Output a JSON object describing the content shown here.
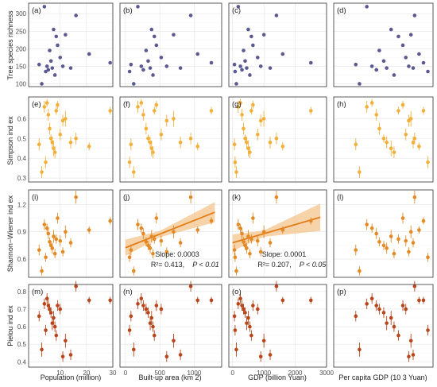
{
  "colors": {
    "richness": "#5a5a91",
    "simpson": "#f2b03b",
    "shannon": "#e38a25",
    "pielou": "#b8461c",
    "fit_line": "#e27d18",
    "fit_band": "#f3c48b"
  },
  "rows": [
    {
      "key": "richness",
      "ylabel": "Tree species richness",
      "ylim": [
        92,
        330
      ],
      "yticks": [
        100,
        150,
        200,
        250,
        300
      ],
      "tick_labels": [
        "100",
        "150",
        "200",
        "250",
        "300"
      ]
    },
    {
      "key": "simpson",
      "ylabel": "Simpson ind ex",
      "ylim": [
        0.28,
        0.71
      ],
      "yticks": [
        0.3,
        0.4,
        0.5,
        0.6
      ],
      "tick_labels": [
        "0.3",
        "0.4",
        "0.5",
        "0.6"
      ]
    },
    {
      "key": "shannon",
      "ylabel": "Shannon−Wiener ind ex",
      "ylim": [
        0.4,
        1.36
      ],
      "yticks": [
        0.6,
        0.9,
        1.2
      ],
      "tick_labels": [
        "0.6",
        "0.9",
        "1.2"
      ]
    },
    {
      "key": "pielou",
      "ylabel": "Pielou ind ex",
      "ylim": [
        0.37,
        0.84
      ],
      "yticks": [
        0.4,
        0.5,
        0.6,
        0.7,
        0.8
      ],
      "tick_labels": [
        "0.4",
        "0.5",
        "0.6",
        "0.7",
        "0.8"
      ]
    }
  ],
  "columns": [
    {
      "key": "population",
      "xlabel": "Population (million)",
      "xlim": [
        -2,
        30
      ],
      "xticks": [
        10,
        20,
        30
      ],
      "tick_labels": [
        "10",
        "20",
        "30"
      ]
    },
    {
      "key": "builtup",
      "xlabel": "Built-up area (km 2)",
      "xlim": [
        -80,
        1400
      ],
      "xticks": [
        0,
        500,
        1000
      ],
      "tick_labels": [
        "0",
        "500",
        "1000"
      ]
    },
    {
      "key": "gdp",
      "xlabel": "GDP (billion Yuan)",
      "xlim": [
        -120,
        3000
      ],
      "xticks": [
        0,
        1000,
        2000,
        3000
      ],
      "tick_labels": [
        "0",
        "1000",
        "2000",
        "3000"
      ]
    },
    {
      "key": "percapita",
      "xlabel": "Per capita GDP (10 3 Yuan)",
      "xlim": [
        10,
        145
      ],
      "xticks": [],
      "tick_labels": []
    }
  ],
  "panel_tags": [
    "(a)",
    "(b)",
    "(c)",
    "(d)",
    "(e)",
    "(f)",
    "(g)",
    "(h)",
    "(i)",
    "(j)",
    "(k)",
    "(l)",
    "(m)",
    "(n)",
    "(o)",
    "(p)"
  ],
  "chart_data": {
    "type": "scatter",
    "note_cities": 20,
    "x": {
      "population": [
        2.0,
        3.0,
        4.0,
        5.0,
        5.5,
        6.0,
        6.5,
        7.0,
        7.5,
        8.0,
        8.5,
        9.0,
        10.0,
        11.0,
        12.0,
        14.0,
        16.0,
        21.0,
        29.0,
        4.5
      ],
      "builtup": [
        80,
        120,
        180,
        230,
        260,
        300,
        330,
        360,
        380,
        400,
        420,
        450,
        520,
        600,
        700,
        800,
        950,
        1050,
        1250,
        60
      ],
      "gdp": [
        60,
        120,
        180,
        250,
        300,
        350,
        400,
        450,
        500,
        550,
        600,
        650,
        800,
        900,
        1000,
        1200,
        1400,
        1600,
        2500,
        80
      ],
      "percapita": [
        40,
        45,
        55,
        62,
        68,
        72,
        78,
        82,
        88,
        92,
        98,
        104,
        108,
        112,
        115,
        118,
        120,
        126,
        132,
        138
      ]
    },
    "series": [
      {
        "key": "richness",
        "values": [
          155,
          100,
          320,
          150,
          140,
          195,
          165,
          145,
          255,
          125,
          235,
          210,
          175,
          150,
          240,
          145,
          295,
          185,
          160,
          135
        ],
        "err": null
      },
      {
        "key": "simpson",
        "values": [
          0.47,
          0.33,
          0.66,
          0.68,
          0.62,
          0.55,
          0.5,
          0.48,
          0.45,
          0.43,
          0.64,
          0.67,
          0.52,
          0.59,
          0.6,
          0.48,
          0.5,
          0.46,
          0.64,
          0.38
        ],
        "err": [
          0.03,
          0.03,
          0.03,
          0.02,
          0.03,
          0.03,
          0.02,
          0.03,
          0.04,
          0.03,
          0.02,
          0.02,
          0.03,
          0.03,
          0.04,
          0.03,
          0.03,
          0.02,
          0.02,
          0.03
        ]
      },
      {
        "key": "shannon",
        "values": [
          0.7,
          0.47,
          0.98,
          0.94,
          0.88,
          0.79,
          0.75,
          0.72,
          0.85,
          0.66,
          0.82,
          1.05,
          0.8,
          0.68,
          0.9,
          0.78,
          1.28,
          0.92,
          1.02,
          0.62
        ],
        "err": [
          0.06,
          0.05,
          0.06,
          0.05,
          0.06,
          0.05,
          0.05,
          0.06,
          0.07,
          0.05,
          0.05,
          0.06,
          0.06,
          0.05,
          0.07,
          0.05,
          0.07,
          0.04,
          0.04,
          0.05
        ]
      },
      {
        "key": "pielou",
        "values": [
          0.66,
          0.47,
          0.73,
          0.76,
          0.72,
          0.7,
          0.68,
          0.62,
          0.65,
          0.6,
          0.55,
          0.72,
          0.7,
          0.43,
          0.52,
          0.44,
          0.83,
          0.75,
          0.75,
          0.58
        ],
        "err": [
          0.03,
          0.04,
          0.03,
          0.03,
          0.03,
          0.03,
          0.03,
          0.04,
          0.04,
          0.03,
          0.03,
          0.03,
          0.03,
          0.03,
          0.04,
          0.03,
          0.03,
          0.02,
          0.02,
          0.03
        ]
      }
    ],
    "fits": [
      {
        "panel": "(j)",
        "row": "shannon",
        "col": "builtup",
        "intercept": 0.725,
        "slope": 0.0003,
        "band_low": [
          0.09,
          0.035,
          0.12
        ],
        "band_at": [
          0,
          500,
          1400
        ],
        "line_span": [
          0,
          1300
        ],
        "slope_text": "Slope: 0.0003",
        "r2_text": "R²= 0.413,",
        "p_text": "P < 0.01"
      },
      {
        "panel": "(k)",
        "row": "shannon",
        "col": "gdp",
        "intercept": 0.78,
        "slope": 0.0001,
        "band_low": [
          0.09,
          0.035,
          0.15
        ],
        "band_at": [
          0,
          1000,
          2800
        ],
        "line_span": [
          0,
          2800
        ],
        "slope_text": "Slope: 0.0001",
        "r2_text": "R²= 0.207,",
        "p_text": "P < 0.05"
      }
    ]
  }
}
